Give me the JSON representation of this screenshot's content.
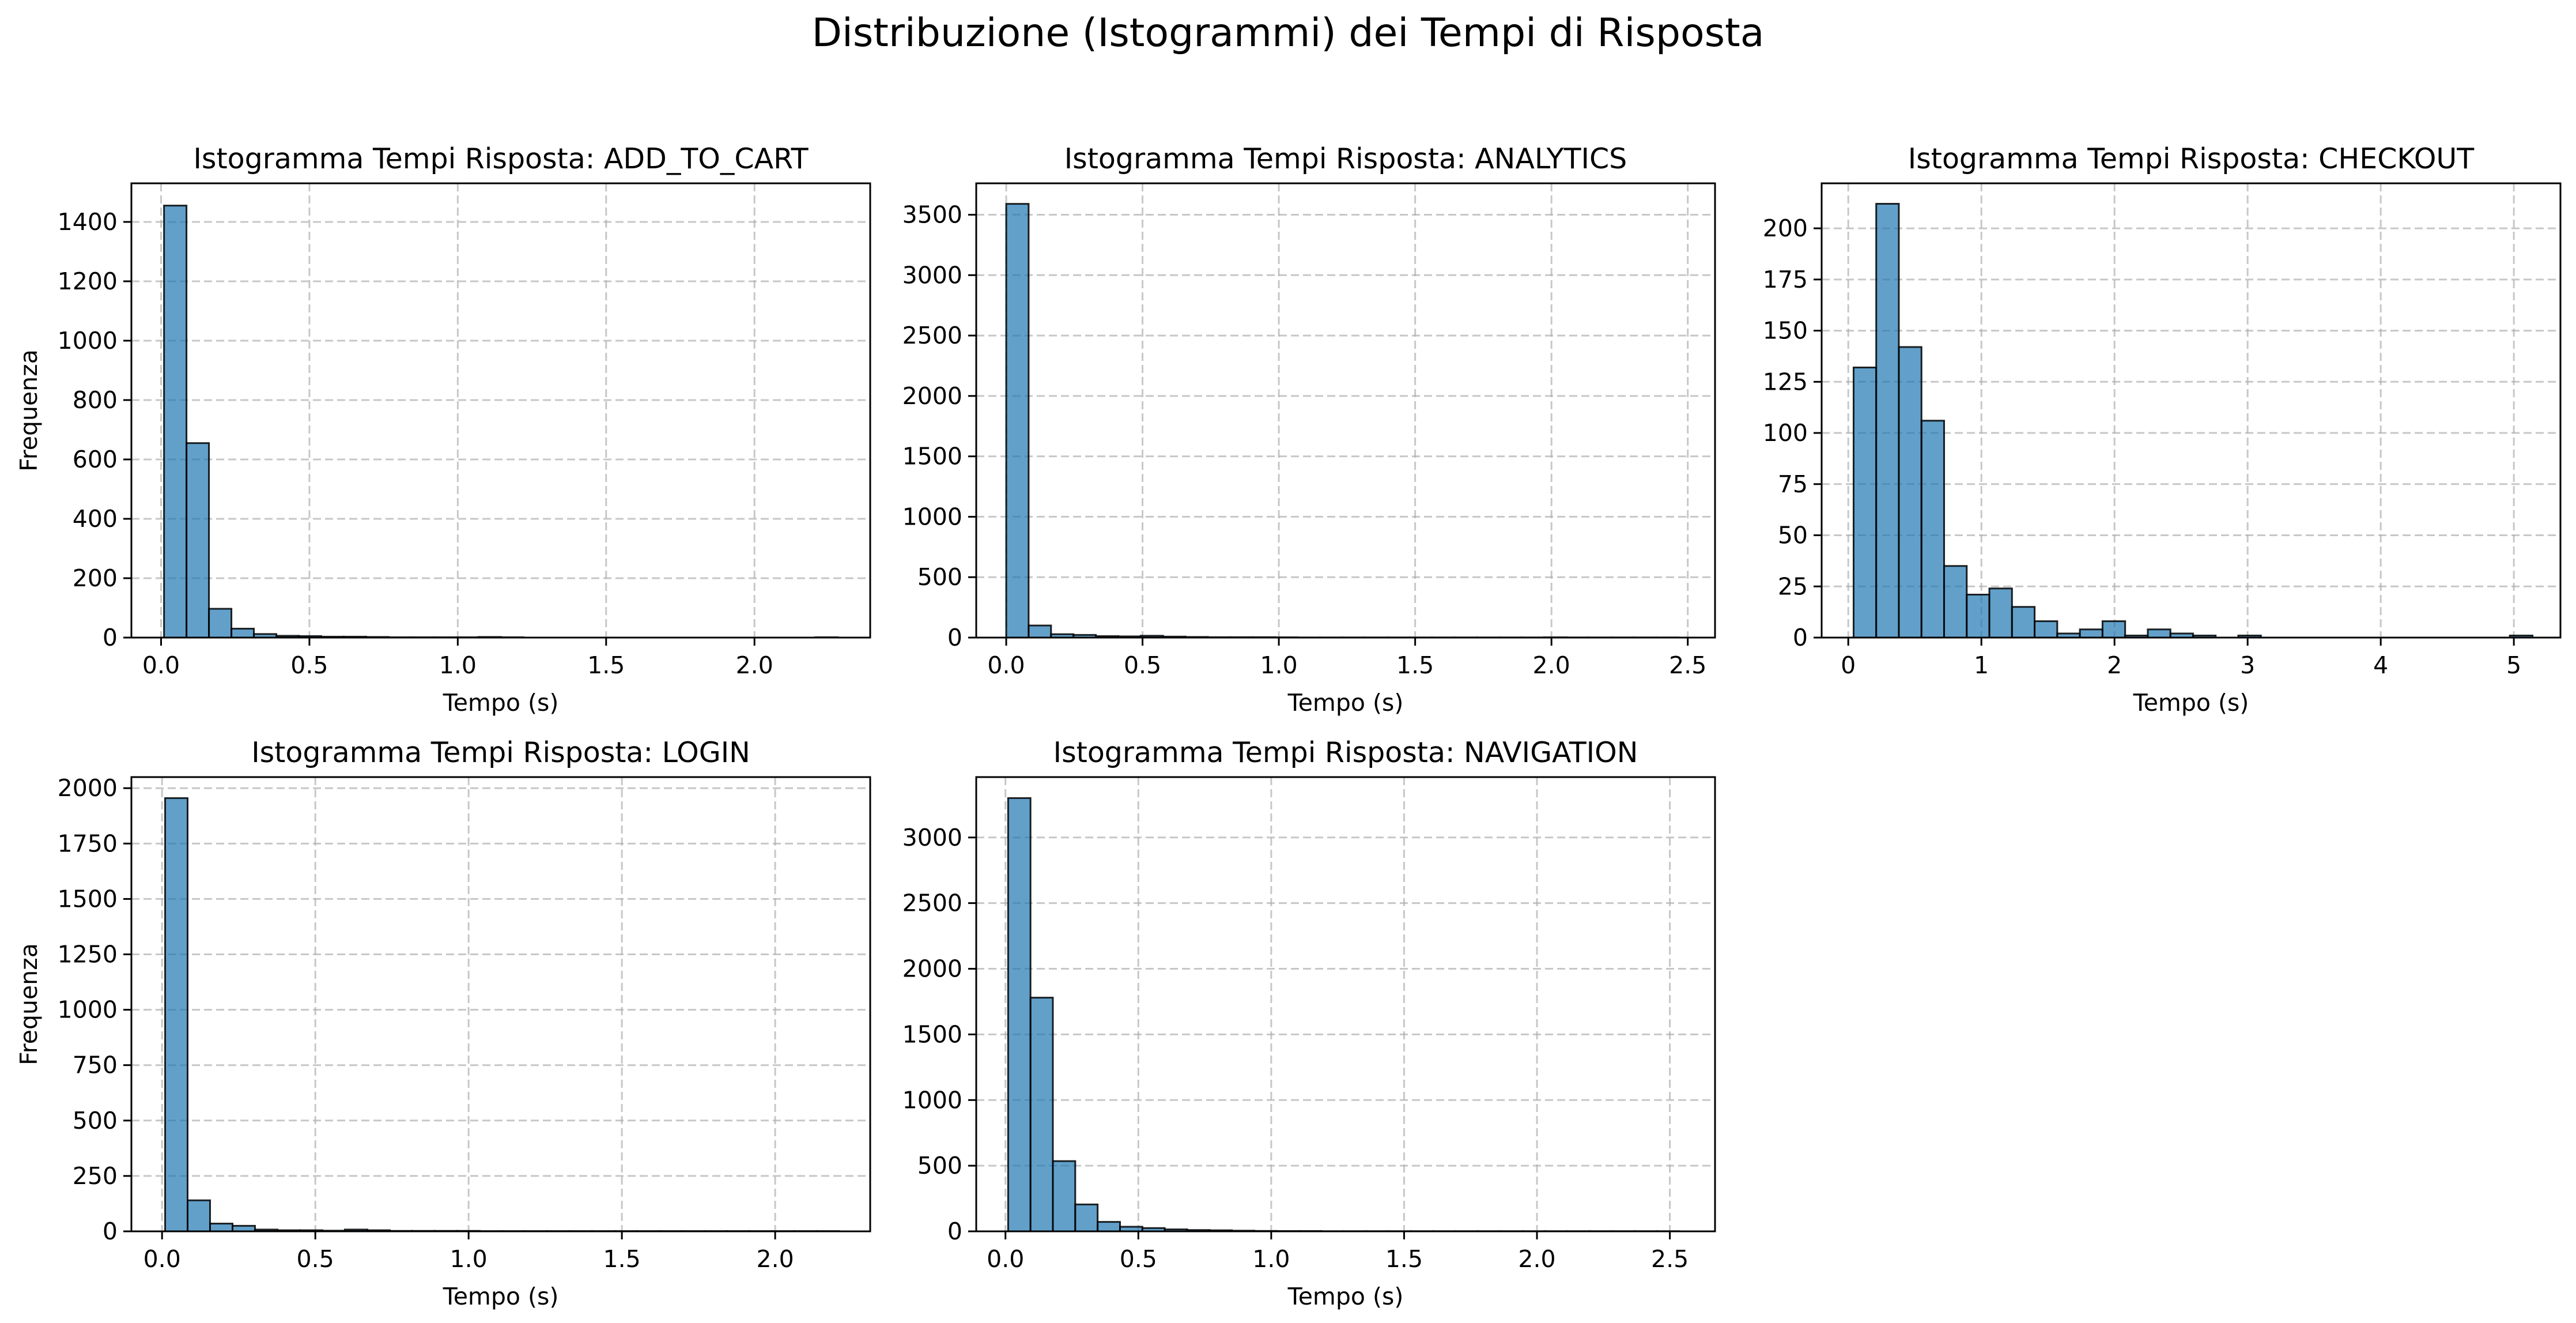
{
  "figure": {
    "suptitle": "Distribuzione (Istogrammi) dei Tempi di Risposta",
    "bar_color": "#1f77b4",
    "edge_color": "#000000",
    "grid_color": "#b0b0b0"
  },
  "chart_data": [
    {
      "type": "bar",
      "title": "Istogramma Tempi Risposta: ADD_TO_CART",
      "xlabel": "Tempo (s)",
      "ylabel": "Frequenza",
      "xlim": [
        -0.1,
        2.39
      ],
      "ylim": [
        0,
        1530
      ],
      "grid": true,
      "xticks": [
        0.0,
        0.5,
        1.0,
        1.5,
        2.0
      ],
      "xtick_labels": [
        "0.0",
        "0.5",
        "1.0",
        "1.5",
        "2.0"
      ],
      "yticks": [
        0,
        200,
        400,
        600,
        800,
        1000,
        1200,
        1400
      ],
      "ytick_labels": [
        "0",
        "200",
        "400",
        "600",
        "800",
        "1000",
        "1200",
        "1400"
      ],
      "bin_start": 0.01,
      "bin_width": 0.0757,
      "values": [
        1455,
        655,
        97,
        30,
        12,
        6,
        5,
        3,
        3,
        2,
        1,
        1,
        1,
        1,
        2,
        1,
        0,
        0,
        0,
        0,
        0,
        0,
        0,
        0,
        0,
        0,
        0,
        0,
        0,
        1
      ]
    },
    {
      "type": "bar",
      "title": "Istogramma Tempi Risposta: ANALYTICS",
      "xlabel": "Tempo (s)",
      "ylabel": "",
      "xlim": [
        -0.11,
        2.6
      ],
      "ylim": [
        0,
        3760
      ],
      "grid": true,
      "xticks": [
        0.0,
        0.5,
        1.0,
        1.5,
        2.0,
        2.5
      ],
      "xtick_labels": [
        "0.0",
        "0.5",
        "1.0",
        "1.5",
        "2.0",
        "2.5"
      ],
      "yticks": [
        0,
        500,
        1000,
        1500,
        2000,
        2500,
        3000,
        3500
      ],
      "ytick_labels": [
        "0",
        "500",
        "1000",
        "1500",
        "2000",
        "2500",
        "3000",
        "3500"
      ],
      "bin_start": 0.0,
      "bin_width": 0.0822,
      "values": [
        3590,
        100,
        28,
        22,
        12,
        10,
        15,
        8,
        5,
        3,
        3,
        3,
        2,
        1,
        1,
        1,
        1,
        1,
        1,
        1,
        1,
        1,
        1,
        1,
        2,
        1,
        1,
        1,
        1,
        1
      ]
    },
    {
      "type": "bar",
      "title": "Istogramma Tempi Risposta: CHECKOUT",
      "xlabel": "Tempo (s)",
      "ylabel": "",
      "xlim": [
        -0.2,
        5.35
      ],
      "ylim": [
        0,
        222
      ],
      "grid": true,
      "xticks": [
        0,
        1,
        2,
        3,
        4,
        5
      ],
      "xtick_labels": [
        "0",
        "1",
        "2",
        "3",
        "4",
        "5"
      ],
      "yticks": [
        0,
        25,
        50,
        75,
        100,
        125,
        150,
        175,
        200
      ],
      "ytick_labels": [
        "0",
        "25",
        "50",
        "75",
        "100",
        "125",
        "150",
        "175",
        "200"
      ],
      "bin_start": 0.04,
      "bin_width": 0.17,
      "values": [
        132,
        212,
        142,
        106,
        35,
        21,
        24,
        15,
        8,
        2,
        4,
        8,
        1,
        4,
        2,
        1,
        0,
        1,
        0,
        0,
        0,
        0,
        0,
        0,
        0,
        0,
        0,
        0,
        0,
        1
      ]
    },
    {
      "type": "bar",
      "title": "Istogramma Tempi Risposta: LOGIN",
      "xlabel": "Tempo (s)",
      "ylabel": "Frequenza",
      "xlim": [
        -0.1,
        2.31
      ],
      "ylim": [
        0,
        2050
      ],
      "grid": true,
      "xticks": [
        0.0,
        0.5,
        1.0,
        1.5,
        2.0
      ],
      "xtick_labels": [
        "0.0",
        "0.5",
        "1.0",
        "1.5",
        "2.0"
      ],
      "yticks": [
        0,
        250,
        500,
        750,
        1000,
        1250,
        1500,
        1750,
        2000
      ],
      "ytick_labels": [
        "0",
        "250",
        "500",
        "750",
        "1000",
        "1250",
        "1500",
        "1750",
        "2000"
      ],
      "bin_start": 0.01,
      "bin_width": 0.0733,
      "values": [
        1955,
        140,
        35,
        25,
        8,
        5,
        5,
        3,
        8,
        5,
        2,
        2,
        2,
        2,
        1,
        1,
        1,
        1,
        1,
        1,
        1,
        1,
        1,
        1,
        1,
        1,
        1,
        1,
        1,
        1
      ]
    },
    {
      "type": "bar",
      "title": "Istogramma Tempi Risposta: NAVIGATION",
      "xlabel": "Tempo (s)",
      "ylabel": "",
      "xlim": [
        -0.11,
        2.67
      ],
      "ylim": [
        0,
        3460
      ],
      "grid": true,
      "xticks": [
        0.0,
        0.5,
        1.0,
        1.5,
        2.0,
        2.5
      ],
      "xtick_labels": [
        "0.0",
        "0.5",
        "1.0",
        "1.5",
        "2.0",
        "2.5"
      ],
      "yticks": [
        0,
        500,
        1000,
        1500,
        2000,
        2500,
        3000
      ],
      "ytick_labels": [
        "0",
        "500",
        "1000",
        "1500",
        "2000",
        "2500",
        "3000"
      ],
      "bin_start": 0.01,
      "bin_width": 0.0842,
      "values": [
        3300,
        1780,
        535,
        205,
        72,
        35,
        25,
        15,
        10,
        8,
        5,
        3,
        2,
        2,
        1,
        1,
        1,
        1,
        1,
        1,
        1,
        1,
        1,
        1,
        1,
        1,
        1,
        1,
        1,
        1
      ]
    }
  ]
}
